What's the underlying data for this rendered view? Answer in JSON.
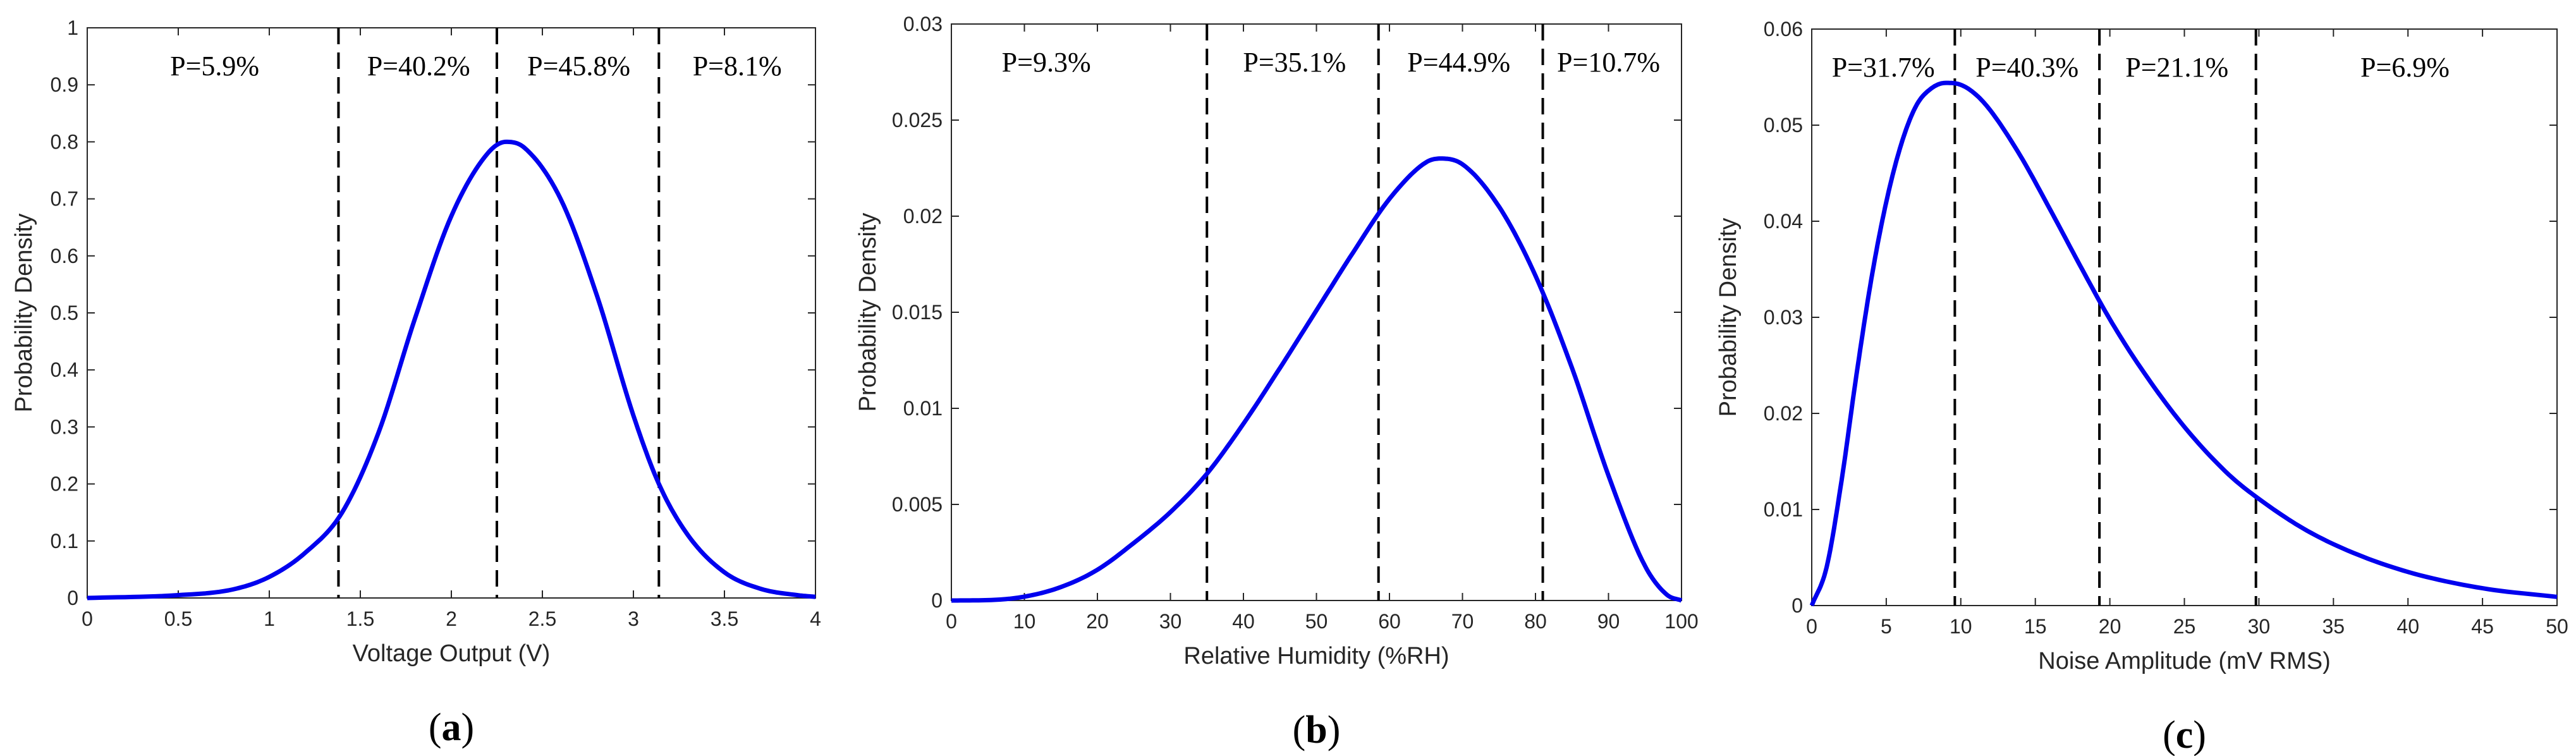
{
  "chart_data": [
    {
      "type": "line",
      "panel_label": "a",
      "xlabel": "Voltage Output (V)",
      "ylabel": "Probability Density",
      "xlim": [
        0,
        4
      ],
      "ylim": [
        0,
        1
      ],
      "xticks": [
        0,
        0.5,
        1,
        1.5,
        2,
        2.5,
        3,
        3.5,
        4
      ],
      "yticks": [
        0,
        0.1,
        0.2,
        0.3,
        0.4,
        0.5,
        0.6,
        0.7,
        0.8,
        0.9,
        1
      ],
      "xtick_labels": [
        "0",
        "0.5",
        "1",
        "1.5",
        "2",
        "2.5",
        "3",
        "3.5",
        "4"
      ],
      "ytick_labels": [
        "0",
        "0.1",
        "0.2",
        "0.3",
        "0.4",
        "0.5",
        "0.6",
        "0.7",
        "0.8",
        "0.9",
        "1"
      ],
      "series": [
        {
          "name": "density",
          "color": "#0000ee",
          "x": [
            0,
            0.5,
            0.8,
            1.0,
            1.2,
            1.4,
            1.6,
            1.8,
            2.0,
            2.2,
            2.3,
            2.4,
            2.6,
            2.8,
            3.0,
            3.14,
            3.3,
            3.5,
            3.7,
            3.9,
            4.0
          ],
          "y": [
            0.0,
            0.005,
            0.015,
            0.037,
            0.08,
            0.15,
            0.29,
            0.49,
            0.67,
            0.78,
            0.8,
            0.79,
            0.7,
            0.53,
            0.32,
            0.2,
            0.11,
            0.045,
            0.016,
            0.005,
            0.002
          ]
        }
      ],
      "boundaries": [
        1.38,
        2.25,
        3.14
      ],
      "regions": [
        {
          "label": "P=5.9%",
          "x": 0.7
        },
        {
          "label": "P=40.2%",
          "x": 1.82
        },
        {
          "label": "P=45.8%",
          "x": 2.7
        },
        {
          "label": "P=8.1%",
          "x": 3.57
        }
      ]
    },
    {
      "type": "line",
      "panel_label": "b",
      "xlabel": "Relative Humidity (%RH)",
      "ylabel": "Probability Density",
      "xlim": [
        0,
        100
      ],
      "ylim": [
        0,
        0.03
      ],
      "xticks": [
        0,
        10,
        20,
        30,
        40,
        50,
        60,
        70,
        80,
        90,
        100
      ],
      "yticks": [
        0,
        0.005,
        0.01,
        0.015,
        0.02,
        0.025,
        0.03
      ],
      "xtick_labels": [
        "0",
        "10",
        "20",
        "30",
        "40",
        "50",
        "60",
        "70",
        "80",
        "90",
        "100"
      ],
      "ytick_labels": [
        "0",
        "0.005",
        "0.01",
        "0.015",
        "0.02",
        "0.025",
        "0.03"
      ],
      "series": [
        {
          "name": "density",
          "color": "#0000ee",
          "x": [
            0,
            5,
            10,
            15,
            20,
            25,
            30,
            35,
            40,
            45,
            50,
            55,
            60,
            65,
            67,
            70,
            75,
            80,
            85,
            90,
            95,
            98,
            100
          ],
          "y": [
            0.0,
            2e-05,
            0.0002,
            0.0007,
            0.0016,
            0.003,
            0.0046,
            0.0066,
            0.0092,
            0.0121,
            0.0151,
            0.0181,
            0.0209,
            0.0228,
            0.023,
            0.0227,
            0.0205,
            0.0169,
            0.0121,
            0.0065,
            0.0018,
            0.0003,
            0.0
          ]
        }
      ],
      "boundaries": [
        35,
        58.5,
        81
      ],
      "regions": [
        {
          "label": "P=9.3%",
          "x": 13
        },
        {
          "label": "P=35.1%",
          "x": 47
        },
        {
          "label": "P=44.9%",
          "x": 69.5
        },
        {
          "label": "P=10.7%",
          "x": 90
        }
      ]
    },
    {
      "type": "line",
      "panel_label": "c",
      "xlabel": "Noise Amplitude (mV RMS)",
      "ylabel": "Probability Density",
      "xlim": [
        0,
        50
      ],
      "ylim": [
        0,
        0.06
      ],
      "xticks": [
        0,
        5,
        10,
        15,
        20,
        25,
        30,
        35,
        40,
        45,
        50
      ],
      "yticks": [
        0,
        0.01,
        0.02,
        0.03,
        0.04,
        0.05,
        0.06
      ],
      "xtick_labels": [
        "0",
        "5",
        "10",
        "15",
        "20",
        "25",
        "30",
        "35",
        "40",
        "45",
        "50"
      ],
      "ytick_labels": [
        "0",
        "0.01",
        "0.02",
        "0.03",
        "0.04",
        "0.05",
        "0.06"
      ],
      "series": [
        {
          "name": "density",
          "color": "#0000ee",
          "x": [
            0,
            1,
            2,
            3,
            4,
            5,
            6,
            7,
            8,
            9,
            10,
            11,
            12,
            14,
            16,
            18,
            20,
            22,
            25,
            28,
            30,
            33,
            36,
            40,
            45,
            50
          ],
          "y": [
            0.0,
            0.004,
            0.013,
            0.024,
            0.034,
            0.042,
            0.048,
            0.052,
            0.0538,
            0.0544,
            0.0542,
            0.0532,
            0.0515,
            0.0468,
            0.0412,
            0.0354,
            0.0298,
            0.0249,
            0.0186,
            0.0136,
            0.0111,
            0.008,
            0.0057,
            0.0035,
            0.0018,
            0.0009
          ]
        }
      ],
      "boundaries": [
        9.6,
        19.3,
        29.8
      ],
      "regions": [
        {
          "label": "P=31.7%",
          "x": 4.8
        },
        {
          "label": "P=40.3%",
          "x": 14.45
        },
        {
          "label": "P=21.1%",
          "x": 24.5
        },
        {
          "label": "P=6.9%",
          "x": 39.8
        }
      ]
    }
  ]
}
